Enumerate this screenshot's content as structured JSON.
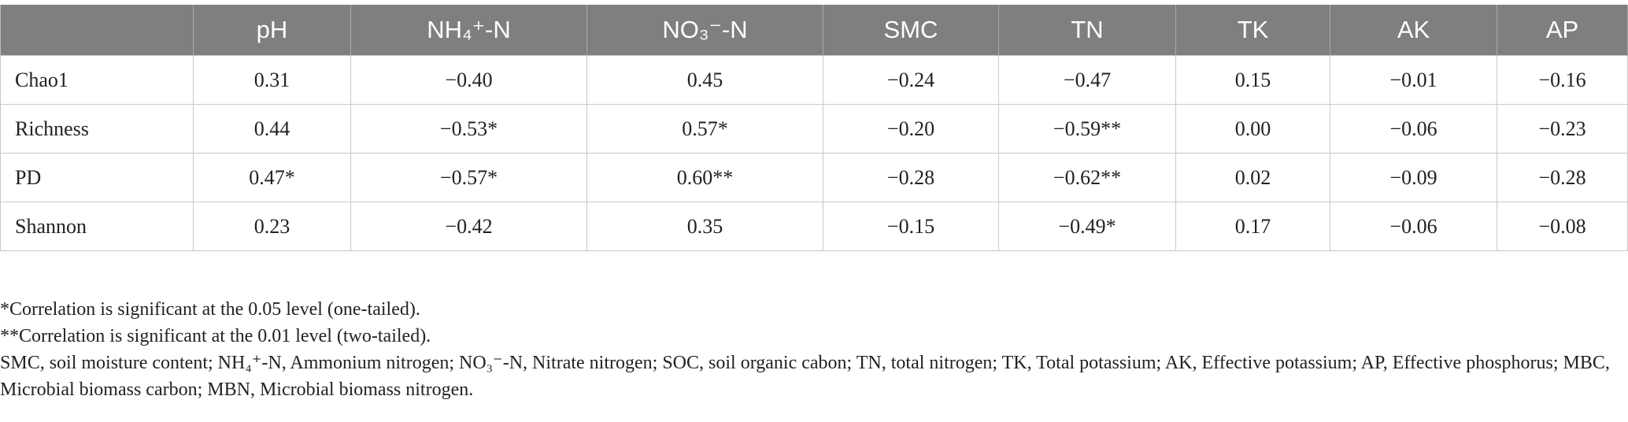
{
  "table": {
    "headers": [
      "",
      "pH",
      "NH₄⁺-N",
      "NO₃⁻-N",
      "SMC",
      "TN",
      "TK",
      "AK",
      "AP"
    ],
    "rows": [
      {
        "label": "Chao1",
        "values": [
          "0.31",
          "−0.40",
          "0.45",
          "−0.24",
          "−0.47",
          "0.15",
          "−0.01",
          "−0.16"
        ]
      },
      {
        "label": "Richness",
        "values": [
          "0.44",
          "−0.53*",
          "0.57*",
          "−0.20",
          "−0.59**",
          "0.00",
          "−0.06",
          "−0.23"
        ]
      },
      {
        "label": "PD",
        "values": [
          "0.47*",
          "−0.57*",
          "0.60**",
          "−0.28",
          "−0.62**",
          "0.02",
          "−0.09",
          "−0.28"
        ]
      },
      {
        "label": "Shannon",
        "values": [
          "0.23",
          "−0.42",
          "0.35",
          "−0.15",
          "−0.49*",
          "0.17",
          "−0.06",
          "−0.08"
        ]
      }
    ]
  },
  "notes": {
    "n1": "*Correlation is significant at the 0.05 level (one-tailed).",
    "n2": "**Correlation is significant at the 0.01 level (two-tailed).",
    "n3": "SMC, soil moisture content; NH₄⁺-N, Ammonium nitrogen; NO₃⁻-N, Nitrate nitrogen; SOC, soil organic cabon; TN, total nitrogen; TK, Total potassium; AK, Effective potassium; AP, Effective phosphorus; MBC, Microbial biomass carbon; MBN, Microbial biomass nitrogen."
  }
}
